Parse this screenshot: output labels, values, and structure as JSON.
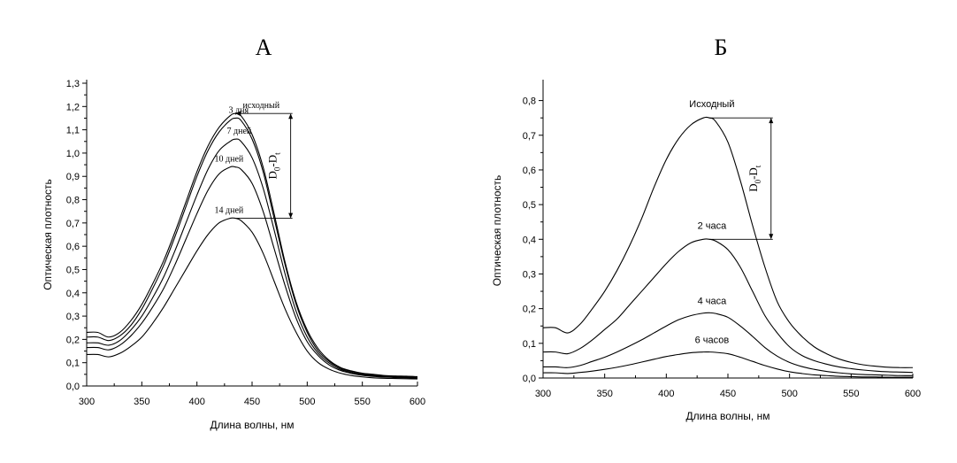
{
  "chart_data": [
    {
      "type": "line",
      "panel_label": "А",
      "xlabel": "Длина волны, нм",
      "ylabel": "Оптическая плотность",
      "xlim": [
        300,
        600
      ],
      "ylim": [
        0,
        1.3
      ],
      "x_ticks": [
        300,
        350,
        400,
        450,
        500,
        550,
        600
      ],
      "y_ticks": [
        0,
        0.1,
        0.2,
        0.3,
        0.4,
        0.5,
        0.6,
        0.7,
        0.8,
        0.9,
        1.0,
        1.1,
        1.2,
        1.3
      ],
      "tick_format": "decimal_comma",
      "grid": false,
      "x": [
        300,
        310,
        320,
        330,
        340,
        350,
        360,
        370,
        380,
        390,
        400,
        410,
        420,
        430,
        435,
        440,
        450,
        460,
        470,
        480,
        490,
        500,
        510,
        520,
        530,
        540,
        550,
        560,
        570,
        580,
        590,
        600
      ],
      "series": [
        {
          "name": "Исходный",
          "label_text": "исходный",
          "values": [
            0.23,
            0.23,
            0.21,
            0.23,
            0.28,
            0.35,
            0.44,
            0.54,
            0.66,
            0.79,
            0.92,
            1.03,
            1.11,
            1.16,
            1.17,
            1.16,
            1.08,
            0.94,
            0.74,
            0.53,
            0.36,
            0.24,
            0.16,
            0.11,
            0.08,
            0.065,
            0.055,
            0.05,
            0.045,
            0.043,
            0.042,
            0.04
          ]
        },
        {
          "name": "3 дня",
          "label_text": "3 дня",
          "values": [
            0.21,
            0.21,
            0.195,
            0.215,
            0.26,
            0.33,
            0.42,
            0.52,
            0.64,
            0.77,
            0.9,
            1.01,
            1.09,
            1.14,
            1.15,
            1.14,
            1.06,
            0.92,
            0.72,
            0.52,
            0.35,
            0.23,
            0.15,
            0.105,
            0.077,
            0.062,
            0.052,
            0.047,
            0.043,
            0.041,
            0.04,
            0.038
          ]
        },
        {
          "name": "7 дней",
          "label_text": "7 дней",
          "values": [
            0.185,
            0.185,
            0.175,
            0.195,
            0.24,
            0.3,
            0.38,
            0.47,
            0.58,
            0.7,
            0.82,
            0.93,
            1.01,
            1.05,
            1.06,
            1.05,
            0.98,
            0.85,
            0.67,
            0.48,
            0.32,
            0.21,
            0.14,
            0.098,
            0.072,
            0.058,
            0.049,
            0.044,
            0.041,
            0.039,
            0.038,
            0.037
          ]
        },
        {
          "name": "10 дней",
          "label_text": "10 дней",
          "values": [
            0.165,
            0.165,
            0.155,
            0.175,
            0.215,
            0.27,
            0.34,
            0.42,
            0.52,
            0.63,
            0.74,
            0.84,
            0.91,
            0.94,
            0.94,
            0.93,
            0.87,
            0.75,
            0.59,
            0.43,
            0.29,
            0.19,
            0.13,
            0.09,
            0.067,
            0.054,
            0.046,
            0.041,
            0.038,
            0.036,
            0.035,
            0.034
          ]
        },
        {
          "name": "14 дней",
          "label_text": "14 дней",
          "values": [
            0.135,
            0.135,
            0.125,
            0.14,
            0.17,
            0.21,
            0.27,
            0.34,
            0.42,
            0.5,
            0.58,
            0.65,
            0.7,
            0.72,
            0.72,
            0.71,
            0.66,
            0.57,
            0.45,
            0.33,
            0.23,
            0.15,
            0.1,
            0.072,
            0.055,
            0.045,
            0.039,
            0.035,
            0.033,
            0.032,
            0.031,
            0.03
          ]
        }
      ],
      "annotation": {
        "text": "D0-Dt",
        "main": "D",
        "sub1": "0",
        "mid": "-D",
        "sub2": "t",
        "x": 485,
        "y_top": 1.17,
        "y_bottom": 0.72
      }
    },
    {
      "type": "line",
      "panel_label": "Б",
      "xlabel": "Длина волны, нм",
      "ylabel": "Оптическая плотность",
      "xlim": [
        300,
        600
      ],
      "ylim": [
        0,
        0.85
      ],
      "x_ticks": [
        300,
        350,
        400,
        450,
        500,
        550,
        600
      ],
      "y_ticks": [
        0,
        0.1,
        0.2,
        0.3,
        0.4,
        0.5,
        0.6,
        0.7,
        0.8
      ],
      "tick_format": "decimal_comma",
      "grid": false,
      "x": [
        300,
        310,
        320,
        330,
        340,
        350,
        360,
        370,
        380,
        390,
        400,
        410,
        420,
        430,
        435,
        440,
        450,
        460,
        470,
        480,
        490,
        500,
        510,
        520,
        530,
        540,
        550,
        560,
        570,
        580,
        590,
        600
      ],
      "series": [
        {
          "name": "Исходный",
          "label_text": "Исходный",
          "values": [
            0.145,
            0.145,
            0.13,
            0.155,
            0.2,
            0.25,
            0.31,
            0.38,
            0.46,
            0.55,
            0.63,
            0.69,
            0.73,
            0.75,
            0.75,
            0.74,
            0.68,
            0.57,
            0.44,
            0.32,
            0.22,
            0.16,
            0.12,
            0.09,
            0.07,
            0.055,
            0.045,
            0.038,
            0.034,
            0.031,
            0.03,
            0.03
          ]
        },
        {
          "name": "2 часа",
          "label_text": "2 часа",
          "values": [
            0.075,
            0.075,
            0.07,
            0.085,
            0.11,
            0.14,
            0.17,
            0.21,
            0.25,
            0.29,
            0.33,
            0.365,
            0.39,
            0.4,
            0.4,
            0.395,
            0.37,
            0.32,
            0.25,
            0.18,
            0.13,
            0.09,
            0.065,
            0.05,
            0.04,
            0.032,
            0.027,
            0.023,
            0.02,
            0.018,
            0.017,
            0.016
          ]
        },
        {
          "name": "4 часа",
          "label_text": "4 часа",
          "values": [
            0.032,
            0.032,
            0.03,
            0.036,
            0.048,
            0.06,
            0.075,
            0.092,
            0.11,
            0.13,
            0.15,
            0.168,
            0.18,
            0.187,
            0.188,
            0.186,
            0.175,
            0.15,
            0.12,
            0.088,
            0.063,
            0.045,
            0.033,
            0.025,
            0.019,
            0.015,
            0.012,
            0.01,
            0.009,
            0.008,
            0.007,
            0.007
          ]
        },
        {
          "name": "6 часов",
          "label_text": "6 часов",
          "values": [
            0.015,
            0.015,
            0.013,
            0.016,
            0.02,
            0.025,
            0.031,
            0.038,
            0.046,
            0.054,
            0.062,
            0.068,
            0.073,
            0.075,
            0.075,
            0.074,
            0.07,
            0.06,
            0.048,
            0.036,
            0.026,
            0.018,
            0.013,
            0.009,
            0.007,
            0.005,
            0.004,
            0.003,
            0.003,
            0.002,
            0.002,
            0.002
          ]
        }
      ],
      "annotation": {
        "text": "D0-Dt",
        "main": "D",
        "sub1": "0",
        "mid": "-D",
        "sub2": "t",
        "x": 485,
        "y_top": 0.75,
        "y_bottom": 0.4
      }
    }
  ]
}
